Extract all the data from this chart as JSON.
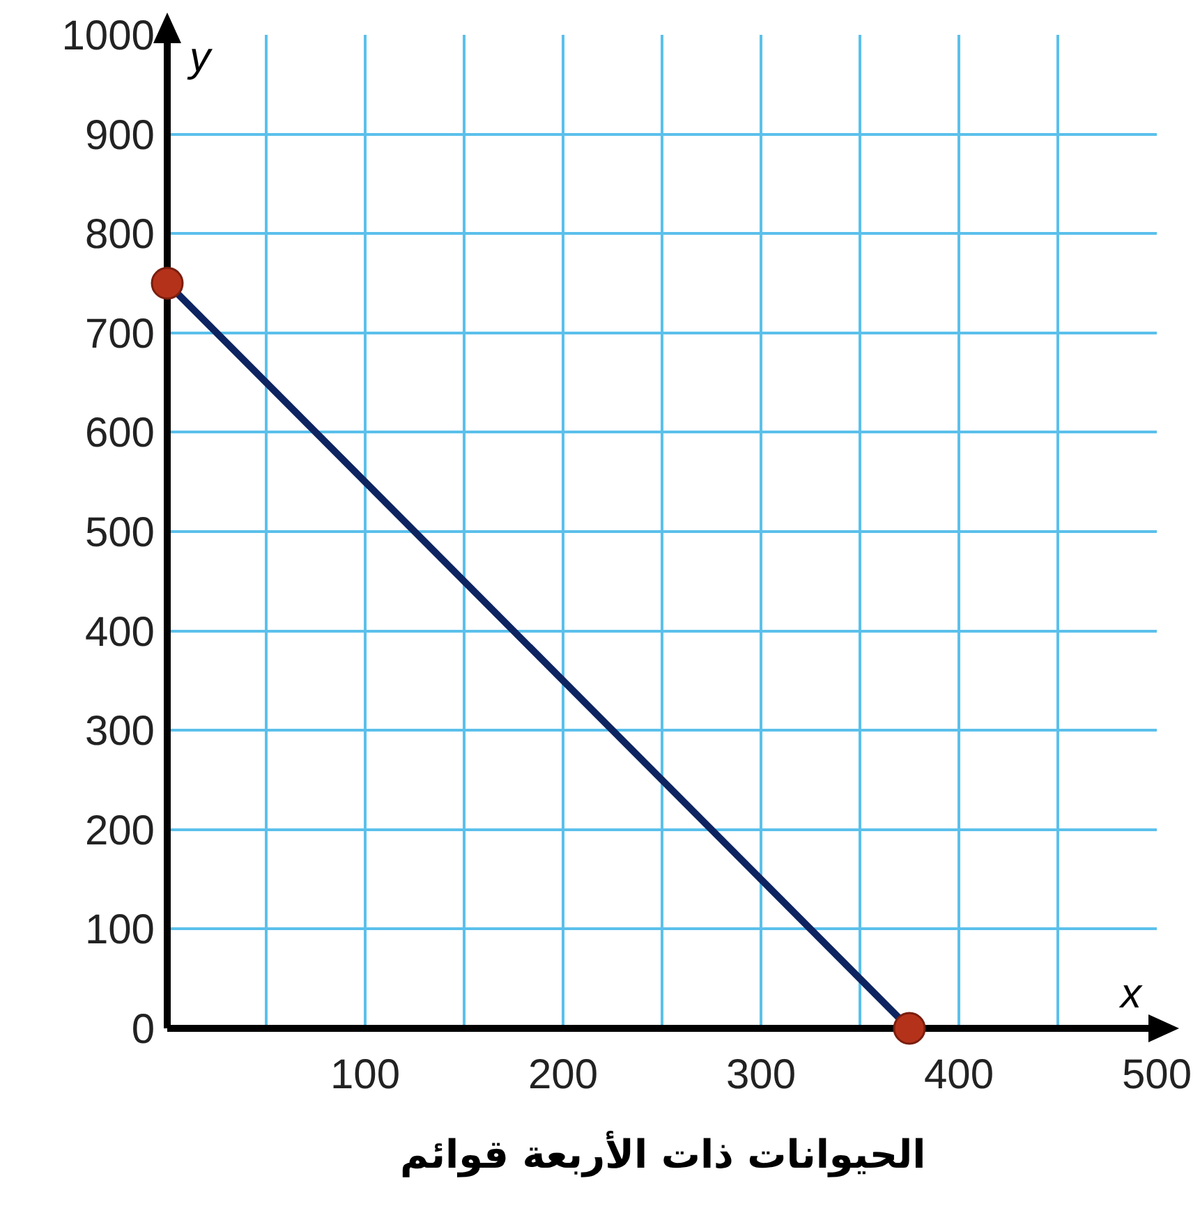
{
  "chart_data": {
    "type": "line",
    "xlabel": "x",
    "ylabel": "y",
    "annotations": [
      "الحيوانات ذات الأربعة قوائم"
    ],
    "series": [
      {
        "color": "#0d2461",
        "colors": [
          "#b5321a",
          "#b5321a"
        ],
        "x": [
          0,
          375
        ],
        "values": [
          750,
          0
        ]
      }
    ],
    "marker": "circle",
    "xlim": [
      0,
      500
    ],
    "ylim": [
      0,
      1000
    ],
    "xticks": [
      {
        "value": 50,
        "label": null
      },
      100,
      {
        "value": 150,
        "label": null
      },
      200,
      {
        "value": 250,
        "label": null
      },
      300,
      {
        "value": 350,
        "label": null
      },
      400,
      {
        "value": 450,
        "label": null
      },
      500
    ],
    "yticks": [
      0,
      100,
      200,
      300,
      400,
      500,
      600,
      700,
      800,
      900,
      1000
    ],
    "grid": true
  }
}
